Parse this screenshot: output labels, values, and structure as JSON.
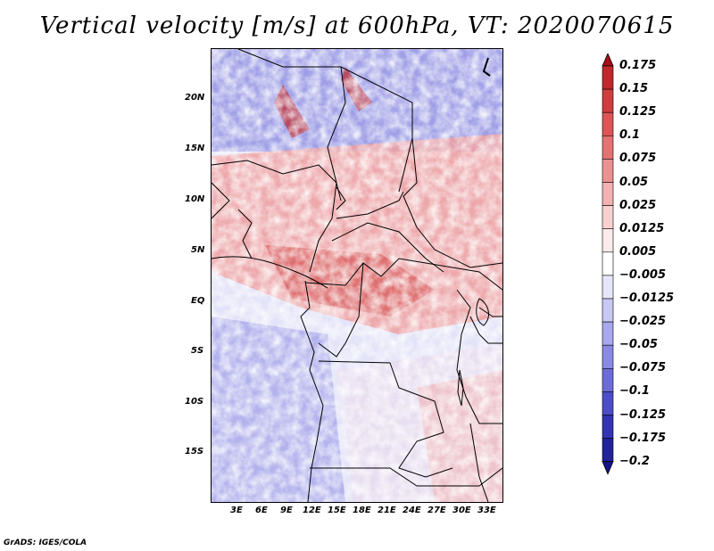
{
  "title": "Vertical velocity [m/s] at 600hPa, VT: 2020070615",
  "credit": "GrADS: IGES/COLA",
  "map": {
    "variable": "Vertical velocity",
    "units": "m/s",
    "level": "600hPa",
    "valid_time": "2020070615",
    "lat_labels": [
      "20N",
      "15N",
      "10N",
      "5N",
      "EQ",
      "5S",
      "10S",
      "15S"
    ],
    "lat_values": [
      20,
      15,
      10,
      5,
      0,
      -5,
      -10,
      -15
    ],
    "lat_range": [
      -20,
      24.5
    ],
    "lon_labels": [
      "3E",
      "6E",
      "9E",
      "12E",
      "15E",
      "18E",
      "21E",
      "24E",
      "27E",
      "30E",
      "33E"
    ],
    "lon_values": [
      3,
      6,
      9,
      12,
      15,
      18,
      21,
      24,
      27,
      30,
      33
    ],
    "lon_range": [
      0,
      35
    ]
  },
  "colorbar": {
    "labels": [
      "0.175",
      "0.15",
      "0.125",
      "0.1",
      "0.075",
      "0.05",
      "0.025",
      "0.0125",
      "0.005",
      "−0.005",
      "−0.0125",
      "−0.025",
      "−0.05",
      "−0.075",
      "−0.1",
      "−0.125",
      "−0.175",
      "−0.2"
    ],
    "colors": [
      "#a50f15",
      "#c0292b",
      "#cf3d3d",
      "#dd5555",
      "#e57272",
      "#ec9191",
      "#f3b1b1",
      "#f9d0d0",
      "#fdeaea",
      "#ffffff",
      "#e6e6fa",
      "#c8c8f4",
      "#a8a8ee",
      "#8a8ae4",
      "#6c6cd8",
      "#4d4dc8",
      "#3434b2",
      "#22229a",
      "#14148a"
    ]
  }
}
